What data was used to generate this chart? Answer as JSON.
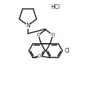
{
  "background_color": "#ffffff",
  "line_color": "#1a1a1a",
  "line_width": 1.1,
  "text_color": "#1a1a1a",
  "hcl_label": "HCl",
  "cl_label": "Cl",
  "n_label": "N",
  "figsize": [
    1.42,
    1.36
  ],
  "dpi": 100
}
